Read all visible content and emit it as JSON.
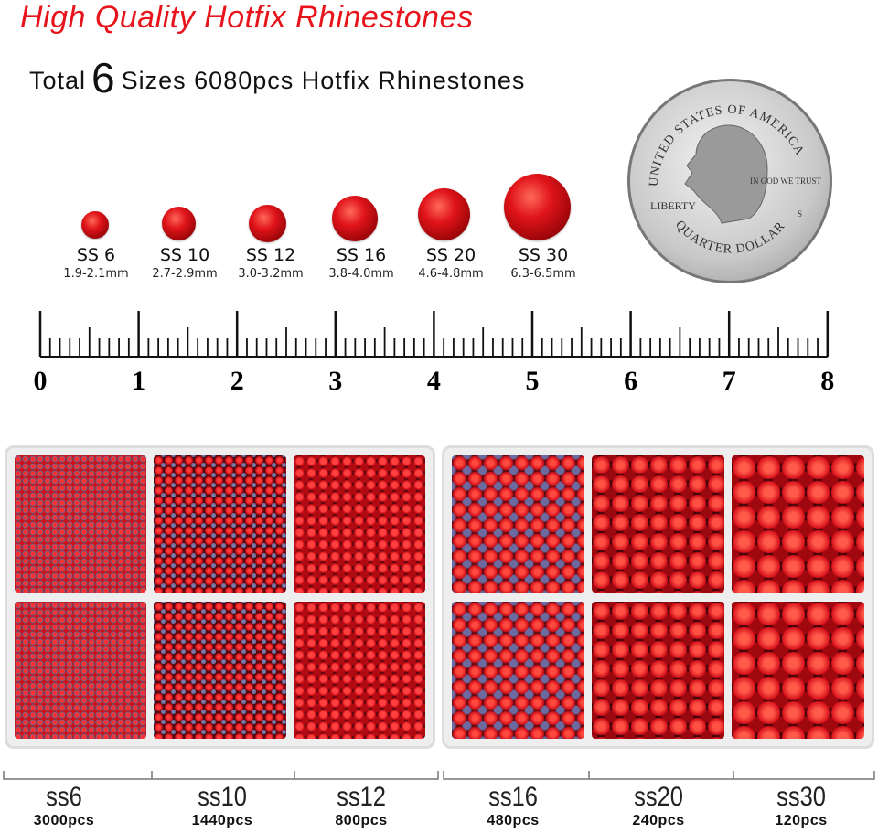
{
  "title": "High Quality Hotfix Rhinestones",
  "subtitle": {
    "pre": "Total",
    "count": "6",
    "post": "Sizes 6080pcs Hotfix Rhinestones"
  },
  "accent_color": "#e8141c",
  "sizes": [
    {
      "name": "SS 6",
      "mm": "1.9-2.1mm"
    },
    {
      "name": "SS 10",
      "mm": "2.7-2.9mm"
    },
    {
      "name": "SS 12",
      "mm": "3.0-3.2mm"
    },
    {
      "name": "SS 16",
      "mm": "3.8-4.0mm"
    },
    {
      "name": "SS 20",
      "mm": "4.6-4.8mm"
    },
    {
      "name": "SS 30",
      "mm": "6.3-6.5mm"
    }
  ],
  "coin": {
    "top": "UNITED STATES OF AMERICA",
    "motto": "IN GOD WE TRUST",
    "left": "LIBERTY",
    "bottom": "QUARTER DOLLAR",
    "mint": "S"
  },
  "ruler": {
    "labels": [
      "0",
      "1",
      "2",
      "3",
      "4",
      "5",
      "6",
      "7",
      "8"
    ]
  },
  "counts": [
    {
      "name": "ss6",
      "pcs": "3000pcs"
    },
    {
      "name": "ss10",
      "pcs": "1440pcs"
    },
    {
      "name": "ss12",
      "pcs": "800pcs"
    },
    {
      "name": "ss16",
      "pcs": "480pcs"
    },
    {
      "name": "ss20",
      "pcs": "240pcs"
    },
    {
      "name": "ss30",
      "pcs": "120pcs"
    }
  ]
}
